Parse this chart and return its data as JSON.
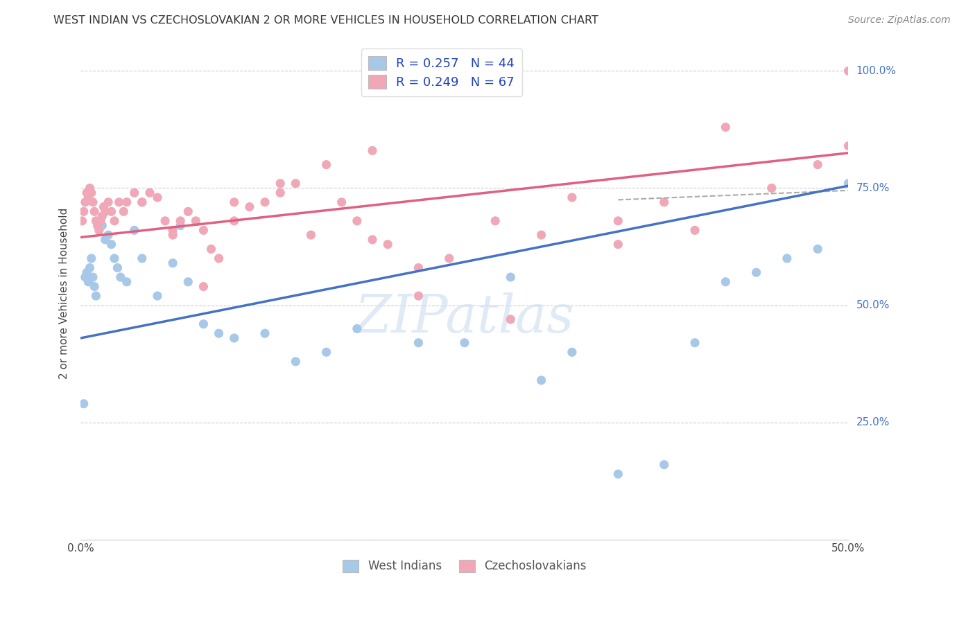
{
  "title": "WEST INDIAN VS CZECHOSLOVAKIAN 2 OR MORE VEHICLES IN HOUSEHOLD CORRELATION CHART",
  "source": "Source: ZipAtlas.com",
  "ylabel": "2 or more Vehicles in Household",
  "legend_line1": "R = 0.257   N = 44",
  "legend_line2": "R = 0.249   N = 67",
  "west_indian_color": "#a8c8e8",
  "czechoslovakian_color": "#f0a8b8",
  "trend_blue": "#4472c4",
  "trend_pink": "#e06080",
  "xlim": [
    0.0,
    0.5
  ],
  "ylim": [
    0.0,
    1.05
  ],
  "blue_trend": [
    0.0,
    0.43,
    0.5,
    0.755
  ],
  "pink_trend": [
    0.0,
    0.645,
    0.5,
    0.825
  ],
  "dash_line": [
    0.35,
    0.725,
    0.5,
    0.745
  ],
  "wi_x": [
    0.002,
    0.003,
    0.004,
    0.005,
    0.006,
    0.007,
    0.008,
    0.009,
    0.01,
    0.012,
    0.014,
    0.016,
    0.018,
    0.02,
    0.022,
    0.024,
    0.026,
    0.03,
    0.035,
    0.04,
    0.05,
    0.06,
    0.065,
    0.07,
    0.08,
    0.09,
    0.1,
    0.12,
    0.14,
    0.16,
    0.18,
    0.22,
    0.25,
    0.28,
    0.3,
    0.32,
    0.35,
    0.38,
    0.4,
    0.42,
    0.44,
    0.46,
    0.48,
    0.5
  ],
  "wi_y": [
    0.29,
    0.56,
    0.57,
    0.55,
    0.58,
    0.6,
    0.56,
    0.54,
    0.52,
    0.68,
    0.67,
    0.64,
    0.65,
    0.63,
    0.6,
    0.58,
    0.56,
    0.55,
    0.66,
    0.6,
    0.52,
    0.59,
    0.67,
    0.55,
    0.46,
    0.44,
    0.43,
    0.44,
    0.38,
    0.4,
    0.45,
    0.42,
    0.42,
    0.56,
    0.34,
    0.4,
    0.14,
    0.16,
    0.42,
    0.55,
    0.57,
    0.6,
    0.62,
    0.76
  ],
  "cz_x": [
    0.001,
    0.002,
    0.003,
    0.004,
    0.005,
    0.006,
    0.007,
    0.008,
    0.009,
    0.01,
    0.011,
    0.012,
    0.013,
    0.014,
    0.015,
    0.016,
    0.018,
    0.02,
    0.022,
    0.025,
    0.028,
    0.03,
    0.035,
    0.04,
    0.045,
    0.05,
    0.055,
    0.06,
    0.065,
    0.07,
    0.075,
    0.08,
    0.085,
    0.09,
    0.1,
    0.11,
    0.12,
    0.13,
    0.14,
    0.16,
    0.18,
    0.2,
    0.22,
    0.24,
    0.27,
    0.3,
    0.32,
    0.35,
    0.38,
    0.4,
    0.13,
    0.15,
    0.17,
    0.19,
    0.1,
    0.08,
    0.06,
    0.04,
    0.22,
    0.35,
    0.42,
    0.45,
    0.48,
    0.5,
    0.5,
    0.19,
    0.28
  ],
  "cz_y": [
    0.68,
    0.7,
    0.72,
    0.74,
    0.73,
    0.75,
    0.74,
    0.72,
    0.7,
    0.68,
    0.67,
    0.66,
    0.68,
    0.69,
    0.71,
    0.7,
    0.72,
    0.7,
    0.68,
    0.72,
    0.7,
    0.72,
    0.74,
    0.72,
    0.74,
    0.73,
    0.68,
    0.66,
    0.68,
    0.7,
    0.68,
    0.66,
    0.62,
    0.6,
    0.68,
    0.71,
    0.72,
    0.74,
    0.76,
    0.8,
    0.68,
    0.63,
    0.58,
    0.6,
    0.68,
    0.65,
    0.73,
    0.68,
    0.72,
    0.66,
    0.76,
    0.65,
    0.72,
    0.64,
    0.72,
    0.54,
    0.65,
    0.72,
    0.52,
    0.63,
    0.88,
    0.75,
    0.8,
    0.84,
    1.0,
    0.83,
    0.47
  ]
}
